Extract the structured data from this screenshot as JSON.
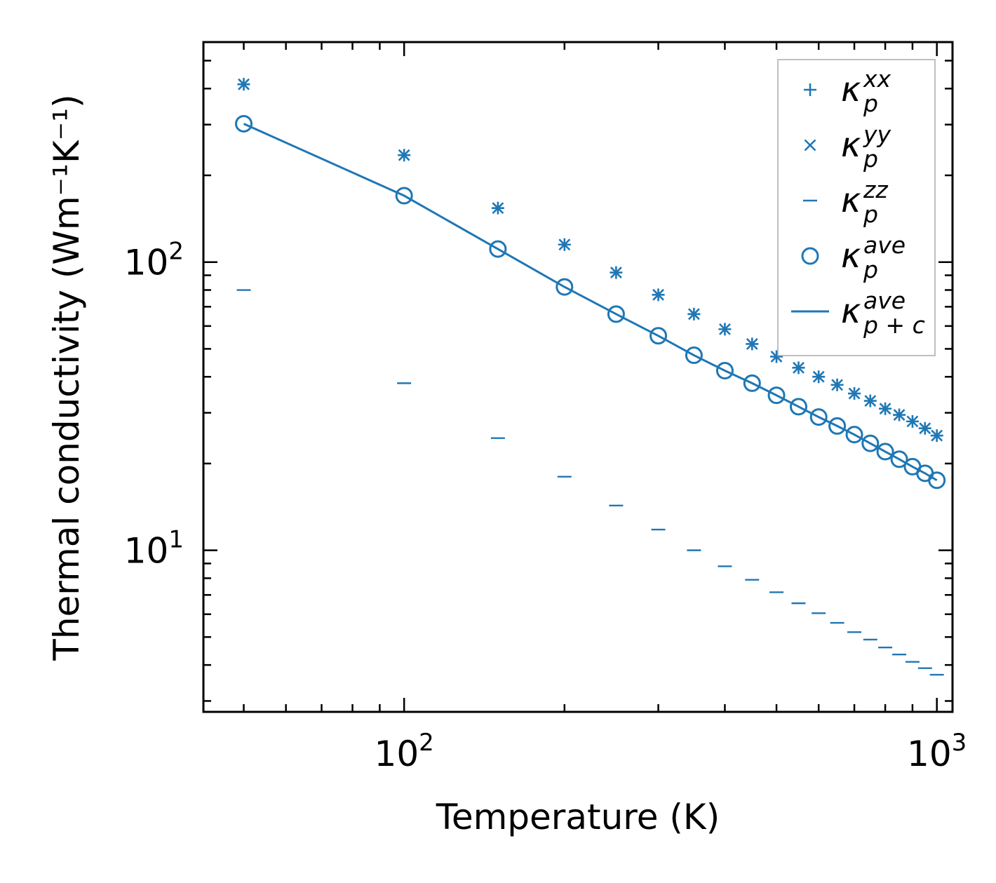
{
  "chart_data": {
    "type": "scatter",
    "title": "",
    "xlabel": "Temperature (K)",
    "ylabel": "Thermal conductivity (Wm⁻¹K⁻¹)",
    "xscale": "log",
    "yscale": "log",
    "xlim": [
      42,
      1070
    ],
    "ylim": [
      2.75,
      580
    ],
    "grid": false,
    "legend_position": "top-right",
    "x_tick_labels": [
      {
        "value": 100,
        "base": "10",
        "exp": "2"
      },
      {
        "value": 1000,
        "base": "10",
        "exp": "3"
      }
    ],
    "y_tick_labels": [
      {
        "value": 10,
        "base": "10",
        "exp": "1"
      },
      {
        "value": 100,
        "base": "10",
        "exp": "2"
      }
    ],
    "x": [
      50,
      100,
      150,
      200,
      250,
      300,
      350,
      400,
      450,
      500,
      550,
      600,
      650,
      700,
      750,
      800,
      850,
      900,
      950,
      1000
    ],
    "series": [
      {
        "name": "kappa_p^xx",
        "marker": "plus",
        "color": "#1f77b4",
        "legend": {
          "base": "κ",
          "sub": "p",
          "sup": "xx"
        },
        "values": [
          414,
          235,
          154,
          115,
          92,
          77,
          66,
          58.5,
          52,
          47,
          43,
          40,
          37.5,
          35,
          33,
          31,
          29.5,
          28,
          26.5,
          25
        ]
      },
      {
        "name": "kappa_p^yy",
        "marker": "x",
        "color": "#1f77b4",
        "legend": {
          "base": "κ",
          "sub": "p",
          "sup": "yy"
        },
        "values": [
          414,
          235,
          154,
          115,
          92,
          77,
          66,
          58.5,
          52,
          47,
          43,
          40,
          37.5,
          35,
          33,
          31,
          29.5,
          28,
          26.5,
          25
        ]
      },
      {
        "name": "kappa_p^zz",
        "marker": "hline",
        "color": "#1f77b4",
        "legend": {
          "base": "κ",
          "sub": "p",
          "sup": "zz"
        },
        "values": [
          80,
          38,
          24.5,
          18,
          14.3,
          11.8,
          10,
          8.8,
          7.9,
          7.15,
          6.55,
          6.05,
          5.6,
          5.2,
          4.9,
          4.6,
          4.35,
          4.1,
          3.9,
          3.7
        ]
      },
      {
        "name": "kappa_p^ave",
        "marker": "circle",
        "color": "#1f77b4",
        "legend": {
          "base": "κ",
          "sub": "p",
          "sup": "ave"
        },
        "values": [
          302,
          170,
          111,
          82,
          66,
          55.5,
          47.5,
          42,
          38,
          34.5,
          31.5,
          29,
          27,
          25.2,
          23.5,
          22,
          20.7,
          19.5,
          18.5,
          17.5
        ]
      },
      {
        "name": "kappa_p+c^ave",
        "marker": "line",
        "color": "#1f77b4",
        "legend": {
          "base": "κ",
          "sub": "p + c",
          "sup": "ave"
        },
        "values": [
          302,
          170,
          111,
          82,
          66,
          55.5,
          47.5,
          42,
          38,
          34.5,
          31.5,
          29,
          27,
          25.2,
          23.5,
          22,
          20.7,
          19.5,
          18.5,
          17.5
        ]
      }
    ]
  }
}
